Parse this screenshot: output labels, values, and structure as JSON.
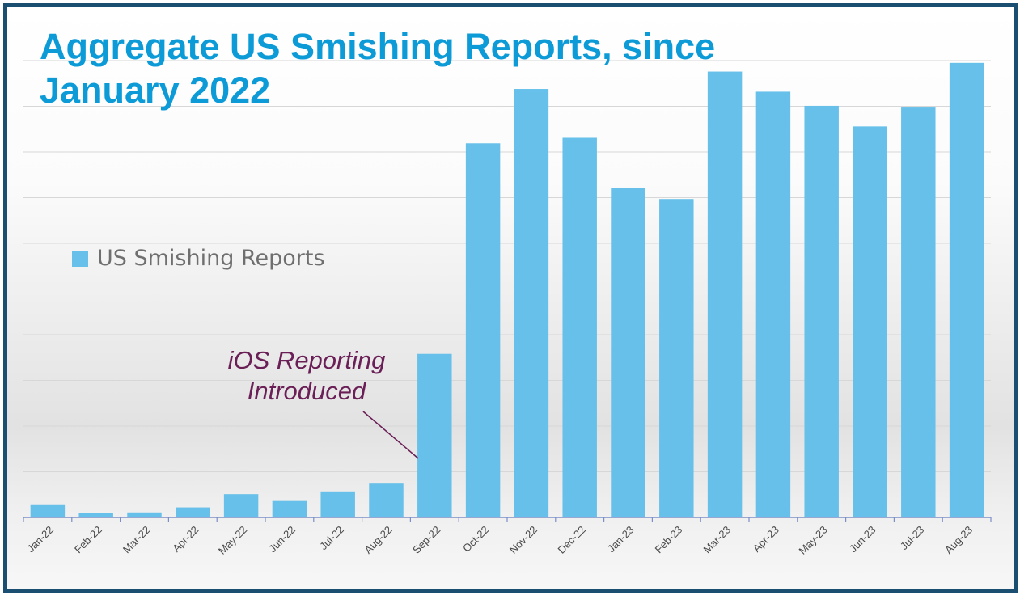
{
  "chart_data": {
    "type": "bar",
    "title": "Aggregate US Smishing Reports, since January 2022",
    "categories": [
      "Jan-22",
      "Feb-22",
      "Mar-22",
      "Apr-22",
      "May-22",
      "Jun-22",
      "Jul-22",
      "Aug-22",
      "Sep-22",
      "Oct-22",
      "Nov-22",
      "Dec-22",
      "Jan-23",
      "Feb-23",
      "Mar-23",
      "Apr-23",
      "May-23",
      "Jun-23",
      "Jul-23",
      "Aug-23"
    ],
    "series": [
      {
        "name": "US Smishing Reports",
        "values": [
          2.7,
          1.0,
          1.1,
          2.2,
          5.1,
          3.6,
          5.7,
          7.4,
          35.8,
          81.9,
          93.8,
          83.1,
          72.2,
          69.7,
          97.6,
          93.2,
          90.1,
          85.6,
          89.9,
          99.5
        ]
      }
    ],
    "ylim": [
      0,
      100
    ],
    "y_tick_labels_shown": false,
    "grid": true,
    "legend_position": "left-middle",
    "annotation": {
      "text": "iOS Reporting Introduced",
      "points_to": "Sep-22",
      "color": "#6a1f56"
    },
    "bar_color": "#67c0e9",
    "title_color": "#0d9bd8",
    "frame_color": "#1b4f72"
  }
}
